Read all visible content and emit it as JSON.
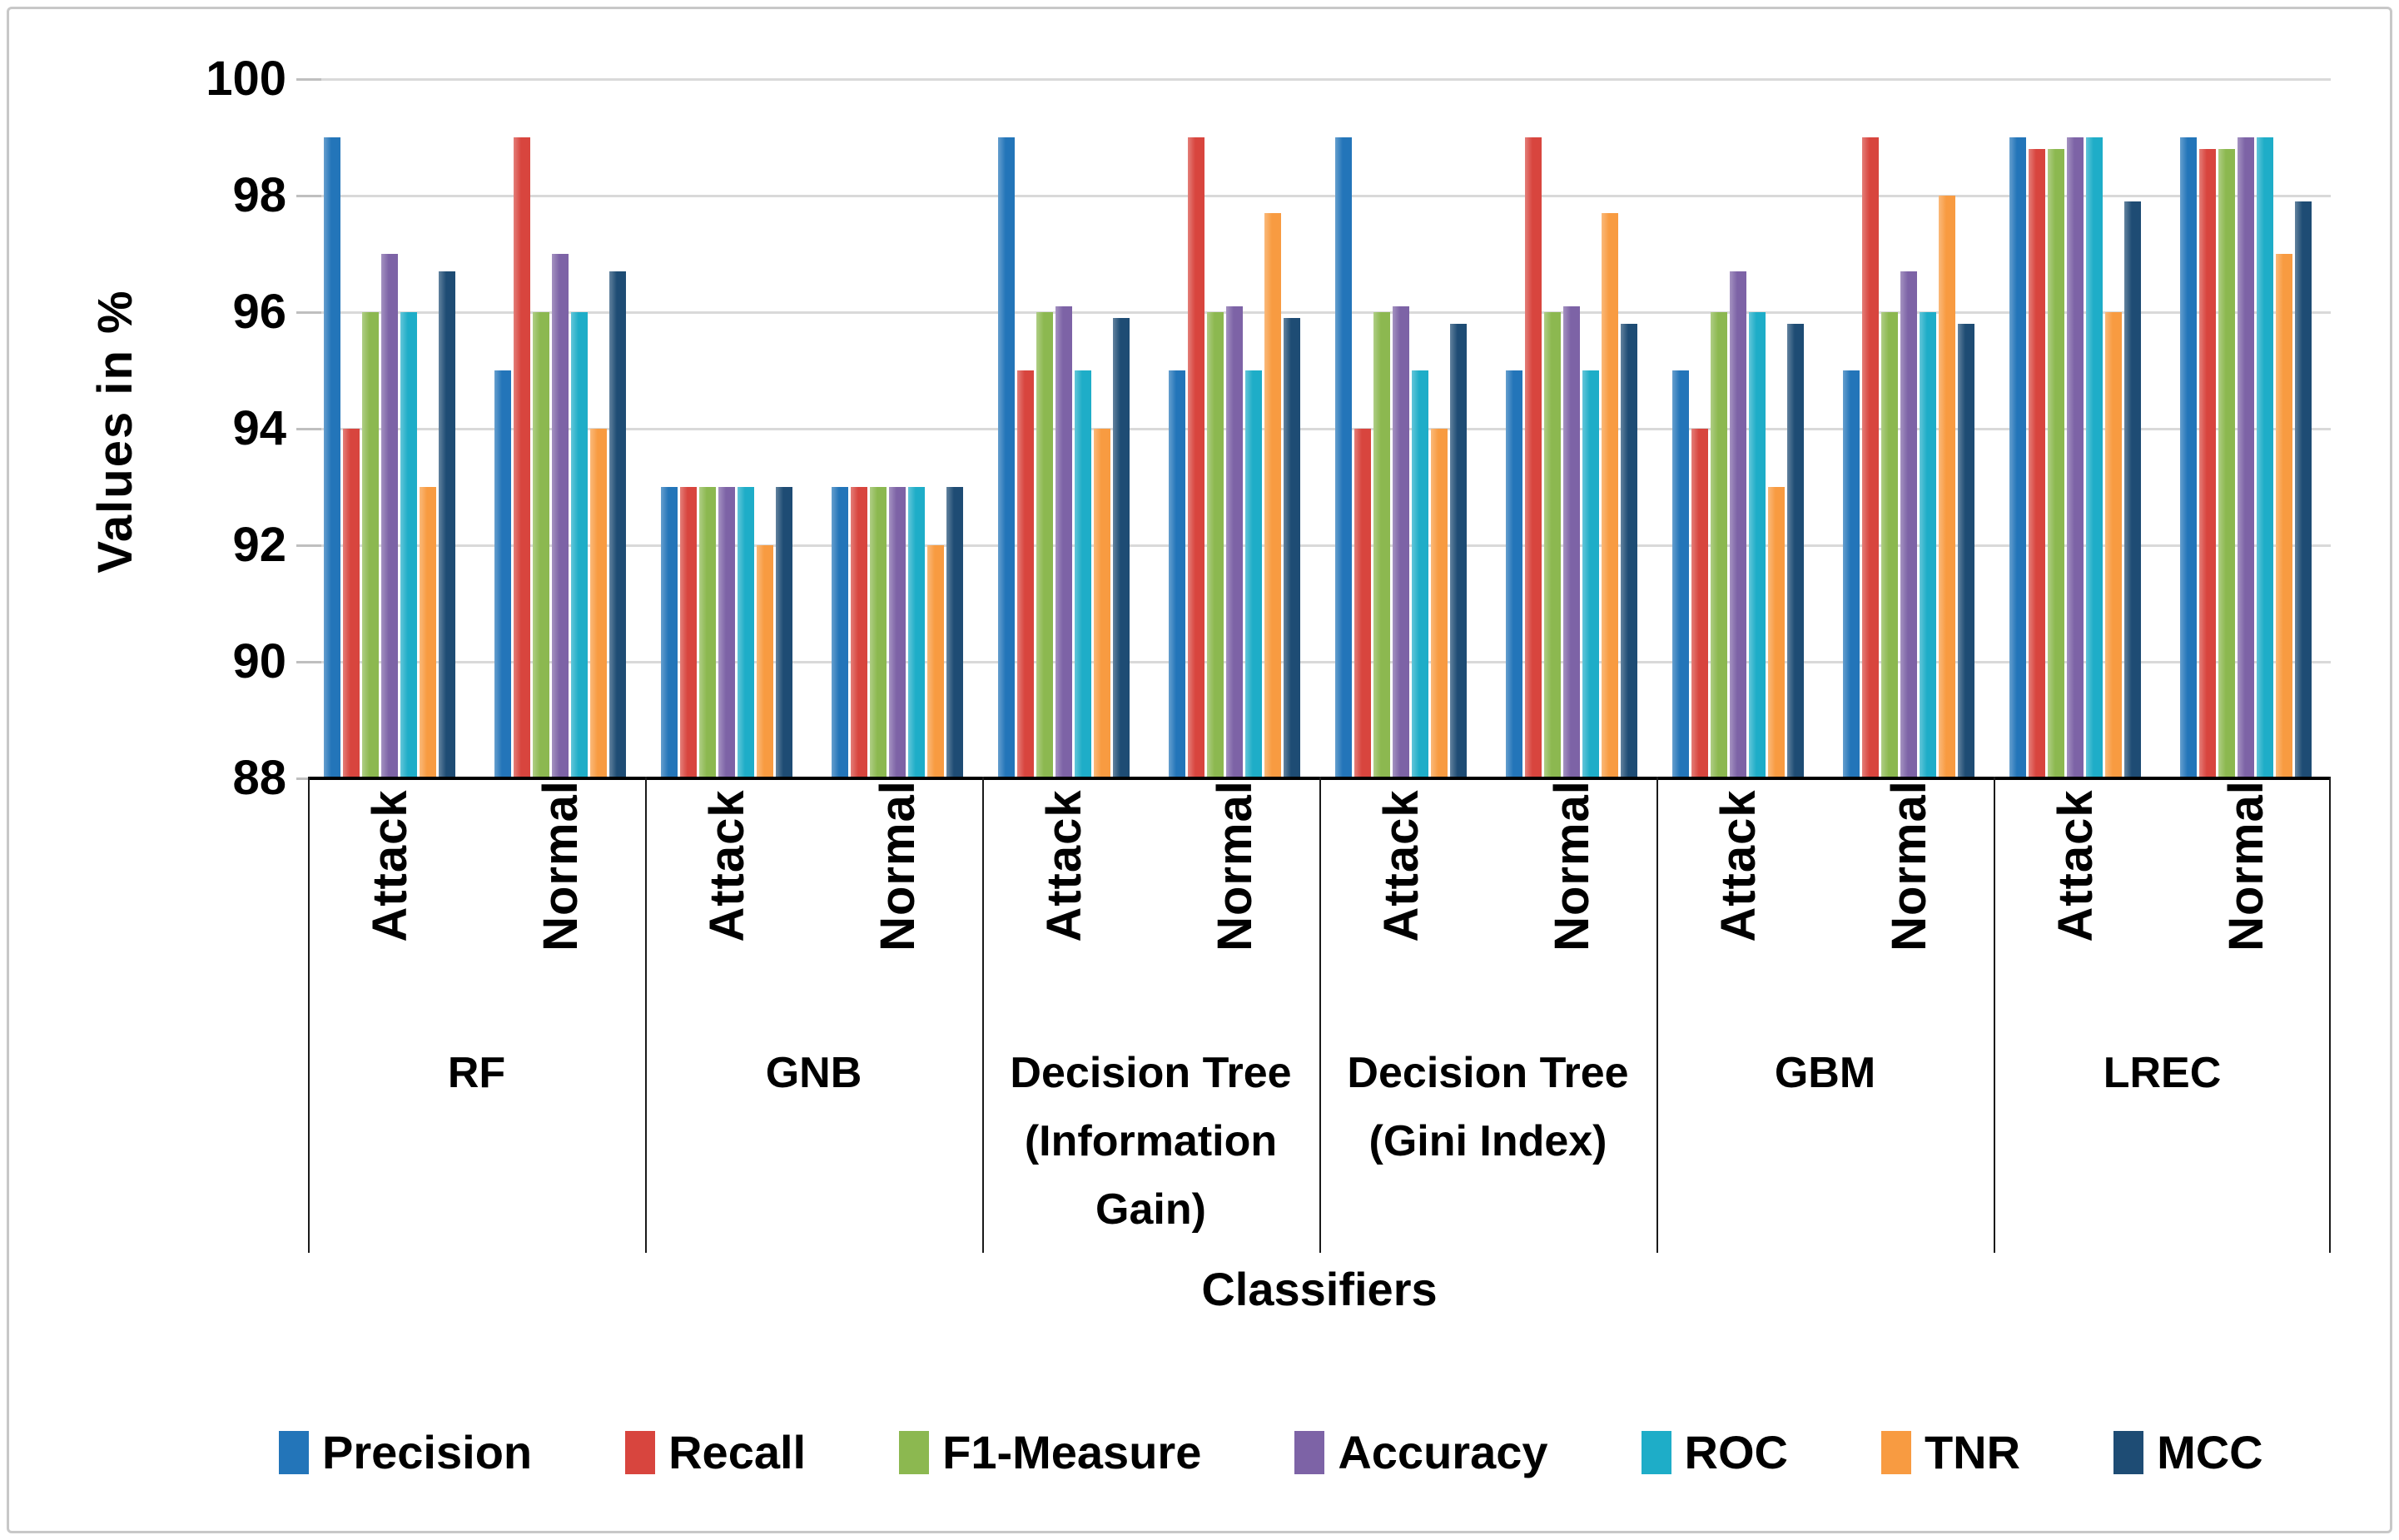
{
  "figure": {
    "y_axis_title": "Values in %",
    "x_axis_title": "Classifiers"
  },
  "chart_data": {
    "type": "bar",
    "title": "",
    "ylabel": "Values in %",
    "xlabel": "Classifiers",
    "ylim": [
      88,
      100
    ],
    "y_ticks": [
      88,
      90,
      92,
      94,
      96,
      98,
      100
    ],
    "grid": true,
    "legend_position": "bottom",
    "gridline_color": "#d9d9d9",
    "series": [
      {
        "key": "precision",
        "name": "Precision",
        "color": "#2375b9"
      },
      {
        "key": "recall",
        "name": "Recall",
        "color": "#d8453e"
      },
      {
        "key": "f1-measure",
        "name": "F1-Measure",
        "color": "#8cb850"
      },
      {
        "key": "accuracy",
        "name": "Accuracy",
        "color": "#7d63a6"
      },
      {
        "key": "roc",
        "name": "ROC",
        "color": "#1eadc8"
      },
      {
        "key": "tnr",
        "name": "TNR",
        "color": "#f89b41"
      },
      {
        "key": "mcc",
        "name": "MCC",
        "color": "#1e4c74"
      }
    ],
    "groups": [
      {
        "key": "rf",
        "label": "RF",
        "subgroups": [
          {
            "key": "attack",
            "label": "Attack",
            "values": [
              99,
              94,
              96,
              97,
              96,
              93,
              96.7
            ]
          },
          {
            "key": "normal",
            "label": "Normal",
            "values": [
              95,
              99,
              96,
              97,
              96,
              94,
              96.7
            ]
          }
        ]
      },
      {
        "key": "gnb",
        "label": "GNB",
        "subgroups": [
          {
            "key": "attack",
            "label": "Attack",
            "values": [
              93,
              93,
              93,
              93,
              93,
              92,
              93
            ]
          },
          {
            "key": "normal",
            "label": "Normal",
            "values": [
              93,
              93,
              93,
              93,
              93,
              92,
              93
            ]
          }
        ]
      },
      {
        "key": "decision-tree-information-gain",
        "label": "Decision Tree\n(Information\nGain)",
        "subgroups": [
          {
            "key": "attack",
            "label": "Attack",
            "values": [
              99,
              95,
              96,
              96.1,
              95,
              94,
              95.9
            ]
          },
          {
            "key": "normal",
            "label": "Normal",
            "values": [
              95,
              99,
              96,
              96.1,
              95,
              97.7,
              95.9
            ]
          }
        ]
      },
      {
        "key": "decision-tree-gini-index",
        "label": "Decision Tree\n(Gini Index)",
        "subgroups": [
          {
            "key": "attack",
            "label": "Attack",
            "values": [
              99,
              94,
              96,
              96.1,
              95,
              94,
              95.8
            ]
          },
          {
            "key": "normal",
            "label": "Normal",
            "values": [
              95,
              99,
              96,
              96.1,
              95,
              97.7,
              95.8
            ]
          }
        ]
      },
      {
        "key": "gbm",
        "label": "GBM",
        "subgroups": [
          {
            "key": "attack",
            "label": "Attack",
            "values": [
              95,
              94,
              96,
              96.7,
              96,
              93,
              95.8
            ]
          },
          {
            "key": "normal",
            "label": "Normal",
            "values": [
              95,
              99,
              96,
              96.7,
              96,
              98,
              95.8
            ]
          }
        ]
      },
      {
        "key": "lrec",
        "label": "LREC",
        "subgroups": [
          {
            "key": "attack",
            "label": "Attack",
            "values": [
              99,
              98.8,
              98.8,
              99,
              99,
              96,
              97.9
            ]
          },
          {
            "key": "normal",
            "label": "Normal",
            "values": [
              99,
              98.8,
              98.8,
              99,
              99,
              97,
              97.9
            ]
          }
        ]
      }
    ]
  }
}
